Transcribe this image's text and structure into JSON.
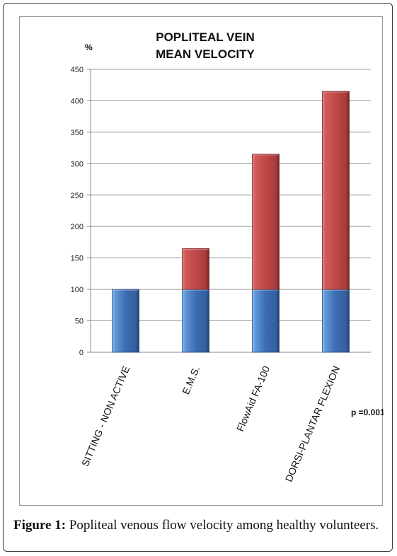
{
  "chart_data": {
    "type": "bar",
    "stacked": true,
    "title_lines": [
      "POPLITEAL VEIN",
      "MEAN VELOCITY"
    ],
    "ylabel": "%",
    "xlabel": "",
    "ylim": [
      0,
      450
    ],
    "yticks": [
      "0",
      "50",
      "100",
      "150",
      "200",
      "250",
      "300",
      "350",
      "400",
      "450"
    ],
    "grid": true,
    "categories": [
      "SITTING - NON ACTIVE",
      "E.M.S.",
      "FlowAid FA-100",
      "DORSI-PLANTAR FLEXION"
    ],
    "series": [
      {
        "values": [
          100,
          100,
          100,
          100
        ],
        "color": "#3f6db3"
      },
      {
        "values": [
          0,
          65,
          215,
          315
        ],
        "color": "#c84a4a"
      }
    ],
    "totals": [
      100,
      165,
      315,
      415
    ],
    "annotation": "p =0.001"
  },
  "caption": {
    "label": "Figure 1:",
    "text": " Popliteal venous flow velocity among healthy volunteers."
  }
}
